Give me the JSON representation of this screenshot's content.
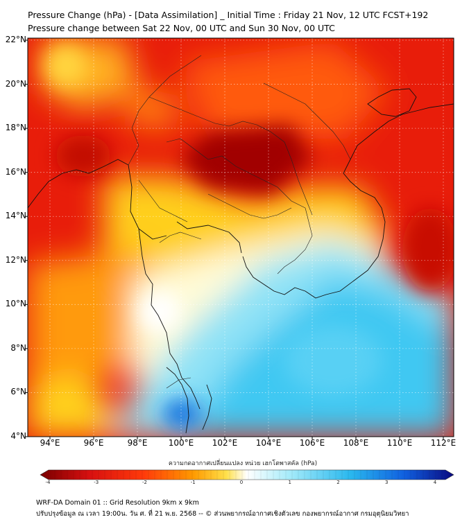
{
  "header": {
    "title_line1": "Pressure Change (hPa) - [Data Assimilation] _ Initial Time : Friday 21 Nov, 12 UTC FCST+192",
    "title_line2": "Pressure change between Sat 22 Nov, 00 UTC and Sun 30 Nov, 00 UTC"
  },
  "map": {
    "lat_labels": [
      "22°N",
      "20°N",
      "18°N",
      "16°N",
      "14°N",
      "12°N",
      "10°N",
      "8°N",
      "6°N",
      "4°N"
    ],
    "lon_labels": [
      "94°E",
      "96°E",
      "98°E",
      "100°E",
      "102°E",
      "104°E",
      "106°E",
      "108°E",
      "110°E",
      "112°E"
    ]
  },
  "colorbar": {
    "title": "ความกดอากาศเปลี่ยนแปลง หน่วย เฮกโตพาสคัล (hPa)",
    "ticks": [
      "-4",
      "-3",
      "-2",
      "-1",
      "0",
      "1",
      "2",
      "3",
      "4"
    ],
    "colors": {
      "min": "#7a0000",
      "red": "#e8190a",
      "orange": "#ff7a00",
      "yellow": "#ffd21a",
      "pale": "#fff8c0",
      "white": "#ffffff",
      "cyan": "#3cc8f0",
      "blue": "#0a3ad0",
      "max": "#0a0a80"
    }
  },
  "footer": {
    "line1": "WRF-DA Domain 01 :: Grid Resolution 9km x 9km",
    "line2": "ปรับปรุงข้อมูล ณ เวลา 19:00น. วัน ศ. ที่ 21 พ.ย. 2568 -- © ส่วนพยากรณ์อากาศเชิงตัวเลข กองพยากรณ์อากาศ กรมอุตุนิยมวิทยา"
  }
}
